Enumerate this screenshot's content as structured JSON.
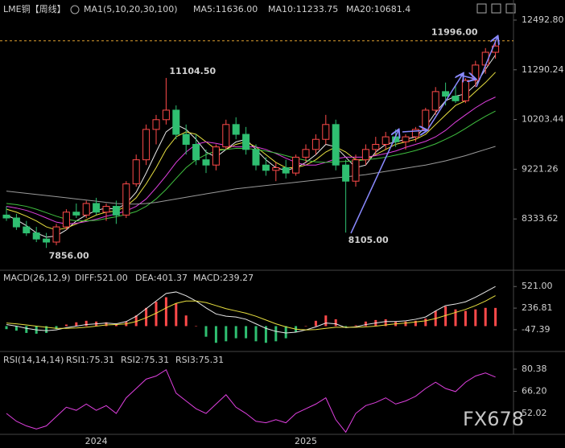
{
  "watermark": "FX678",
  "chart_data": [
    {
      "type": "candlestick",
      "title": "LME铜【周线】",
      "indicator": "MA1(5,10,20,30,100)",
      "log": true,
      "up_color": "#ff4a4a",
      "down_color": "#2fbf71",
      "categories": [
        null,
        null,
        null,
        null,
        null,
        null,
        null,
        null,
        null,
        "2024",
        null,
        null,
        null,
        null,
        null,
        null,
        null,
        null,
        null,
        null,
        null,
        null,
        null,
        null,
        null,
        null,
        null,
        null,
        null,
        null,
        "2025",
        null,
        null,
        null,
        null,
        null,
        null,
        null,
        null,
        null,
        null,
        null,
        null,
        null,
        null,
        null,
        null,
        null,
        null,
        null
      ],
      "ohlc": [
        [
          8400,
          8550,
          8300,
          8350
        ],
        [
          8350,
          8420,
          8150,
          8200
        ],
        [
          8200,
          8300,
          8050,
          8100
        ],
        [
          8100,
          8200,
          7950,
          8000
        ],
        [
          8000,
          8100,
          7856,
          7950
        ],
        [
          7950,
          8250,
          7900,
          8200
        ],
        [
          8200,
          8500,
          8150,
          8450
        ],
        [
          8450,
          8600,
          8350,
          8400
        ],
        [
          8400,
          8650,
          8350,
          8600
        ],
        [
          8600,
          8700,
          8400,
          8450
        ],
        [
          8450,
          8600,
          8300,
          8550
        ],
        [
          8550,
          8650,
          8250,
          8400
        ],
        [
          8400,
          9000,
          8350,
          8950
        ],
        [
          8950,
          9500,
          8900,
          9400
        ],
        [
          9400,
          10100,
          9300,
          10000
        ],
        [
          10000,
          10300,
          9700,
          10200
        ],
        [
          10200,
          11104.5,
          10100,
          10400
        ],
        [
          10400,
          10500,
          9800,
          9900
        ],
        [
          9900,
          10100,
          9500,
          9700
        ],
        [
          9700,
          9900,
          9300,
          9400
        ],
        [
          9400,
          9600,
          9150,
          9300
        ],
        [
          9300,
          9700,
          9200,
          9650
        ],
        [
          9650,
          10200,
          9600,
          10100
        ],
        [
          10100,
          10250,
          9800,
          9900
        ],
        [
          9900,
          10050,
          9500,
          9600
        ],
        [
          9600,
          9700,
          9200,
          9300
        ],
        [
          9300,
          9450,
          9100,
          9200
        ],
        [
          9200,
          9350,
          9000,
          9250
        ],
        [
          9250,
          9400,
          9050,
          9150
        ],
        [
          9150,
          9500,
          9100,
          9450
        ],
        [
          9450,
          9700,
          9350,
          9600
        ],
        [
          9600,
          9900,
          9500,
          9800
        ],
        [
          9800,
          10300,
          9700,
          10100
        ],
        [
          10100,
          10200,
          9200,
          9300
        ],
        [
          9300,
          9400,
          8105,
          9000
        ],
        [
          9000,
          9500,
          8900,
          9400
        ],
        [
          9400,
          9700,
          9300,
          9600
        ],
        [
          9600,
          9850,
          9500,
          9700
        ],
        [
          9700,
          9950,
          9600,
          9850
        ],
        [
          9850,
          10000,
          9650,
          9750
        ],
        [
          9750,
          9900,
          9600,
          9850
        ],
        [
          9850,
          10050,
          9750,
          10000
        ],
        [
          10000,
          10450,
          9950,
          10400
        ],
        [
          10400,
          10900,
          10300,
          10800
        ],
        [
          10800,
          11000,
          10500,
          10700
        ],
        [
          10700,
          10950,
          10550,
          10600
        ],
        [
          10600,
          11100,
          10550,
          11050
        ],
        [
          11050,
          11500,
          10900,
          11400
        ],
        [
          11400,
          11800,
          11200,
          11700
        ],
        [
          11700,
          11996,
          11550,
          11850
        ]
      ],
      "high_labels": [
        null,
        null,
        null,
        null,
        null,
        null,
        null,
        null,
        null,
        null,
        null,
        null,
        null,
        null,
        null,
        null,
        "11104.50",
        null,
        null,
        null,
        null,
        null,
        null,
        null,
        null,
        null,
        null,
        null,
        null,
        null,
        null,
        null,
        null,
        null,
        null,
        null,
        null,
        null,
        null,
        null,
        null,
        null,
        null,
        null,
        null,
        null,
        null,
        null,
        null,
        "11996.00"
      ],
      "low_labels": [
        null,
        null,
        null,
        null,
        "7856.00",
        null,
        null,
        null,
        null,
        null,
        null,
        null,
        null,
        null,
        null,
        null,
        null,
        null,
        null,
        null,
        null,
        null,
        null,
        null,
        null,
        null,
        null,
        null,
        null,
        null,
        null,
        null,
        null,
        null,
        "8105.00",
        null,
        null,
        null,
        null,
        null,
        null,
        null,
        null,
        null,
        null,
        null,
        null,
        null,
        null,
        null
      ],
      "series": [
        {
          "name": "MA5:11636.00",
          "color": "#e8e8e8",
          "values": [
            8400,
            8320,
            8220,
            8100,
            8030,
            8050,
            8150,
            8300,
            8400,
            8480,
            8520,
            8500,
            8600,
            8800,
            9150,
            9550,
            9950,
            10100,
            10000,
            9800,
            9550,
            9450,
            9600,
            9750,
            9800,
            9600,
            9400,
            9250,
            9200,
            9250,
            9350,
            9500,
            9700,
            9650,
            9450,
            9250,
            9300,
            9550,
            9700,
            9750,
            9800,
            9850,
            10050,
            10350,
            10600,
            10700,
            10750,
            10950,
            11300,
            11636
          ]
        },
        {
          "name": "MA10:11233.75",
          "color": "#e8e040",
          "values": [
            8500,
            8450,
            8380,
            8300,
            8200,
            8150,
            8180,
            8250,
            8320,
            8400,
            8450,
            8470,
            8550,
            8700,
            8950,
            9250,
            9600,
            9850,
            9950,
            9900,
            9750,
            9600,
            9600,
            9700,
            9750,
            9650,
            9500,
            9350,
            9250,
            9250,
            9300,
            9400,
            9550,
            9650,
            9550,
            9400,
            9400,
            9500,
            9600,
            9700,
            9750,
            9800,
            9900,
            10100,
            10300,
            10500,
            10600,
            10800,
            11000,
            11233.75
          ]
        },
        {
          "name": "MA20:10681.4",
          "color": "#e040e0",
          "values": [
            8550,
            8520,
            8480,
            8420,
            8350,
            8280,
            8250,
            8260,
            8290,
            8330,
            8380,
            8420,
            8470,
            8550,
            8680,
            8880,
            9100,
            9350,
            9550,
            9700,
            9750,
            9720,
            9680,
            9650,
            9650,
            9650,
            9600,
            9520,
            9430,
            9350,
            9300,
            9300,
            9350,
            9420,
            9450,
            9450,
            9450,
            9480,
            9520,
            9570,
            9640,
            9700,
            9760,
            9850,
            9980,
            10150,
            10300,
            10450,
            10580,
            10681.4
          ]
        },
        {
          "color": "#40c040",
          "values": [
            8600,
            8580,
            8550,
            8500,
            8440,
            8380,
            8330,
            8300,
            8300,
            8310,
            8340,
            8370,
            8410,
            8460,
            8550,
            8680,
            8850,
            9050,
            9250,
            9400,
            9500,
            9570,
            9600,
            9620,
            9620,
            9600,
            9570,
            9530,
            9480,
            9430,
            9390,
            9360,
            9350,
            9360,
            9370,
            9380,
            9400,
            9420,
            9450,
            9490,
            9530,
            9580,
            9640,
            9710,
            9800,
            9900,
            10020,
            10150,
            10270,
            10380
          ]
        },
        {
          "color": "#9a9a9a",
          "values": [
            8820,
            8800,
            8780,
            8760,
            8740,
            8720,
            8700,
            8680,
            8660,
            8640,
            8620,
            8600,
            8590,
            8590,
            8600,
            8620,
            8650,
            8680,
            8710,
            8740,
            8770,
            8800,
            8830,
            8860,
            8880,
            8900,
            8920,
            8940,
            8960,
            8980,
            9000,
            9020,
            9040,
            9060,
            9080,
            9100,
            9120,
            9150,
            9180,
            9210,
            9240,
            9270,
            9300,
            9340,
            9380,
            9430,
            9480,
            9540,
            9600,
            9660
          ]
        }
      ],
      "ylim": [
        7544,
        13014
      ],
      "yticks": [
        {
          "value": 12492.8,
          "label": "12492.80"
        },
        11290.24,
        10203.44,
        9221.26,
        8333.62
      ]
    },
    {
      "type": "macd",
      "title": "MACD(26,12,9)",
      "series": [
        {
          "name": "DIFF:521.00",
          "color": "#e8e8e8",
          "values": [
            20,
            0,
            -30,
            -50,
            -60,
            -50,
            -20,
            0,
            20,
            30,
            40,
            30,
            60,
            130,
            230,
            330,
            430,
            450,
            400,
            330,
            240,
            160,
            130,
            120,
            90,
            30,
            -30,
            -70,
            -90,
            -80,
            -50,
            -10,
            40,
            30,
            -20,
            -10,
            20,
            40,
            60,
            60,
            70,
            90,
            120,
            200,
            270,
            290,
            320,
            380,
            450,
            521
          ]
        },
        {
          "name": "DEA:401.37",
          "color": "#e8e040",
          "values": [
            40,
            30,
            15,
            0,
            -15,
            -30,
            -30,
            -25,
            -15,
            0,
            15,
            20,
            30,
            60,
            110,
            170,
            240,
            300,
            330,
            330,
            310,
            270,
            230,
            200,
            170,
            130,
            80,
            30,
            -10,
            -40,
            -50,
            -45,
            -30,
            -15,
            -15,
            -15,
            -10,
            0,
            15,
            30,
            40,
            55,
            70,
            100,
            140,
            180,
            220,
            270,
            330,
            401.37
          ]
        }
      ],
      "histogram": {
        "name": "MACD:239.27",
        "color": "#e040e0",
        "up_color": "#ff4a4a",
        "down_color": "#2fbf71",
        "values": [
          -40,
          -60,
          -90,
          -100,
          -90,
          -40,
          20,
          50,
          70,
          60,
          50,
          20,
          60,
          140,
          240,
          320,
          380,
          300,
          140,
          0,
          -140,
          -220,
          -200,
          -160,
          -160,
          -200,
          -220,
          -200,
          -160,
          -80,
          0,
          70,
          140,
          90,
          -10,
          10,
          60,
          80,
          90,
          60,
          60,
          70,
          100,
          200,
          260,
          220,
          200,
          220,
          240,
          239.27
        ]
      },
      "ylim": [
        -260,
        640
      ],
      "yticks": [
        {
          "value": 521,
          "label": "521.00"
        },
        236.81,
        -47.39
      ]
    },
    {
      "type": "rsi",
      "title": "RSI(14,14,14)",
      "color": "#e040e0",
      "legend": [
        {
          "name": "RSI1:75.31",
          "color": "#e8e8e8"
        },
        {
          "name": "RSI2:75.31",
          "color": "#e8e040"
        },
        {
          "name": "RSI3:75.31",
          "color": "#e040e0"
        }
      ],
      "values": [
        52,
        47,
        44,
        42,
        44,
        50,
        56,
        54,
        58,
        54,
        57,
        52,
        62,
        68,
        74,
        76,
        80,
        65,
        60,
        55,
        52,
        58,
        64,
        56,
        52,
        47,
        46,
        48,
        46,
        52,
        55,
        58,
        62,
        48,
        40,
        52,
        57,
        59,
        62,
        58,
        60,
        63,
        68,
        72,
        68,
        66,
        72,
        76,
        78,
        75.31
      ],
      "ylim": [
        38.6,
        87.6
      ],
      "yticks": [
        80.38,
        {
          "value": 66.2,
          "label": "66.20"
        },
        52.02
      ]
    }
  ]
}
